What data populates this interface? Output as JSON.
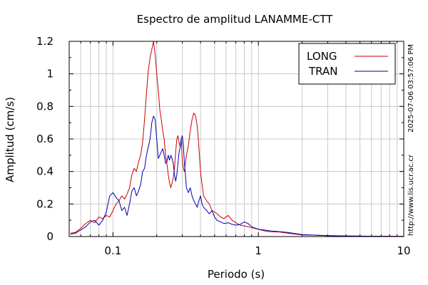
{
  "chart_data": {
    "type": "line",
    "title": "Espectro de amplitud LANAMME-CTT",
    "xlabel": "Periodo (s)",
    "ylabel": "Amplitud (cm/s)",
    "xscale": "log",
    "xlim": [
      0.05,
      10
    ],
    "ylim": [
      0,
      1.2
    ],
    "x_ticks": [
      {
        "value": 0.1,
        "label": "0.1"
      },
      {
        "value": 1,
        "label": "1"
      },
      {
        "value": 10,
        "label": "10"
      }
    ],
    "y_ticks": [
      {
        "value": 0,
        "label": "0"
      },
      {
        "value": 0.2,
        "label": "0.2"
      },
      {
        "value": 0.4,
        "label": "0.4"
      },
      {
        "value": 0.6,
        "label": "0.6"
      },
      {
        "value": 0.8,
        "label": "0.8"
      },
      {
        "value": 1.0,
        "label": "1"
      },
      {
        "value": 1.2,
        "label": "1.2"
      }
    ],
    "grid": true,
    "legend_position": "top-right",
    "series": [
      {
        "name": "LONG",
        "color": "#cc0000",
        "points": [
          [
            0.051,
            0.02
          ],
          [
            0.055,
            0.025
          ],
          [
            0.06,
            0.05
          ],
          [
            0.065,
            0.08
          ],
          [
            0.07,
            0.1
          ],
          [
            0.075,
            0.085
          ],
          [
            0.08,
            0.12
          ],
          [
            0.085,
            0.11
          ],
          [
            0.09,
            0.13
          ],
          [
            0.095,
            0.12
          ],
          [
            0.1,
            0.16
          ],
          [
            0.105,
            0.2
          ],
          [
            0.11,
            0.22
          ],
          [
            0.115,
            0.25
          ],
          [
            0.12,
            0.23
          ],
          [
            0.125,
            0.26
          ],
          [
            0.13,
            0.3
          ],
          [
            0.135,
            0.38
          ],
          [
            0.14,
            0.42
          ],
          [
            0.145,
            0.4
          ],
          [
            0.15,
            0.46
          ],
          [
            0.155,
            0.5
          ],
          [
            0.16,
            0.58
          ],
          [
            0.165,
            0.72
          ],
          [
            0.17,
            0.88
          ],
          [
            0.175,
            1.02
          ],
          [
            0.18,
            1.1
          ],
          [
            0.185,
            1.15
          ],
          [
            0.19,
            1.2
          ],
          [
            0.195,
            1.12
          ],
          [
            0.2,
            1.0
          ],
          [
            0.205,
            0.9
          ],
          [
            0.21,
            0.78
          ],
          [
            0.215,
            0.72
          ],
          [
            0.22,
            0.65
          ],
          [
            0.225,
            0.6
          ],
          [
            0.23,
            0.5
          ],
          [
            0.235,
            0.45
          ],
          [
            0.24,
            0.38
          ],
          [
            0.245,
            0.33
          ],
          [
            0.25,
            0.3
          ],
          [
            0.255,
            0.33
          ],
          [
            0.26,
            0.36
          ],
          [
            0.265,
            0.42
          ],
          [
            0.27,
            0.52
          ],
          [
            0.275,
            0.6
          ],
          [
            0.28,
            0.62
          ],
          [
            0.285,
            0.58
          ],
          [
            0.29,
            0.55
          ],
          [
            0.295,
            0.6
          ],
          [
            0.3,
            0.46
          ],
          [
            0.305,
            0.42
          ],
          [
            0.31,
            0.4
          ],
          [
            0.315,
            0.45
          ],
          [
            0.32,
            0.5
          ],
          [
            0.33,
            0.56
          ],
          [
            0.34,
            0.65
          ],
          [
            0.35,
            0.72
          ],
          [
            0.36,
            0.76
          ],
          [
            0.37,
            0.74
          ],
          [
            0.38,
            0.68
          ],
          [
            0.39,
            0.55
          ],
          [
            0.4,
            0.4
          ],
          [
            0.41,
            0.32
          ],
          [
            0.42,
            0.25
          ],
          [
            0.44,
            0.22
          ],
          [
            0.46,
            0.2
          ],
          [
            0.48,
            0.16
          ],
          [
            0.5,
            0.15
          ],
          [
            0.52,
            0.14
          ],
          [
            0.55,
            0.12
          ],
          [
            0.58,
            0.11
          ],
          [
            0.62,
            0.13
          ],
          [
            0.66,
            0.1
          ],
          [
            0.7,
            0.085
          ],
          [
            0.75,
            0.07
          ],
          [
            0.8,
            0.065
          ],
          [
            0.85,
            0.06
          ],
          [
            0.9,
            0.055
          ],
          [
            1.0,
            0.045
          ],
          [
            1.1,
            0.035
          ],
          [
            1.2,
            0.03
          ],
          [
            1.4,
            0.028
          ],
          [
            1.6,
            0.02
          ],
          [
            1.8,
            0.015
          ],
          [
            2.0,
            0.01
          ],
          [
            2.5,
            0.008
          ],
          [
            3.0,
            0.006
          ],
          [
            4.0,
            0.004
          ],
          [
            5.0,
            0.003
          ],
          [
            6.0,
            0.002
          ],
          [
            8.0,
            0.002
          ],
          [
            10.0,
            0.001
          ]
        ]
      },
      {
        "name": "TRAN",
        "color": "#0000aa",
        "points": [
          [
            0.051,
            0.015
          ],
          [
            0.055,
            0.02
          ],
          [
            0.06,
            0.04
          ],
          [
            0.065,
            0.06
          ],
          [
            0.07,
            0.09
          ],
          [
            0.075,
            0.1
          ],
          [
            0.08,
            0.07
          ],
          [
            0.085,
            0.1
          ],
          [
            0.09,
            0.15
          ],
          [
            0.095,
            0.25
          ],
          [
            0.1,
            0.27
          ],
          [
            0.105,
            0.24
          ],
          [
            0.11,
            0.22
          ],
          [
            0.115,
            0.16
          ],
          [
            0.12,
            0.18
          ],
          [
            0.125,
            0.13
          ],
          [
            0.13,
            0.2
          ],
          [
            0.135,
            0.28
          ],
          [
            0.14,
            0.3
          ],
          [
            0.145,
            0.25
          ],
          [
            0.15,
            0.28
          ],
          [
            0.155,
            0.32
          ],
          [
            0.16,
            0.4
          ],
          [
            0.165,
            0.42
          ],
          [
            0.17,
            0.5
          ],
          [
            0.175,
            0.55
          ],
          [
            0.18,
            0.6
          ],
          [
            0.185,
            0.7
          ],
          [
            0.19,
            0.74
          ],
          [
            0.195,
            0.72
          ],
          [
            0.2,
            0.6
          ],
          [
            0.205,
            0.48
          ],
          [
            0.21,
            0.5
          ],
          [
            0.215,
            0.52
          ],
          [
            0.22,
            0.54
          ],
          [
            0.225,
            0.5
          ],
          [
            0.23,
            0.45
          ],
          [
            0.235,
            0.46
          ],
          [
            0.24,
            0.5
          ],
          [
            0.245,
            0.47
          ],
          [
            0.25,
            0.5
          ],
          [
            0.255,
            0.48
          ],
          [
            0.26,
            0.45
          ],
          [
            0.265,
            0.38
          ],
          [
            0.27,
            0.34
          ],
          [
            0.275,
            0.38
          ],
          [
            0.28,
            0.45
          ],
          [
            0.285,
            0.52
          ],
          [
            0.29,
            0.55
          ],
          [
            0.295,
            0.6
          ],
          [
            0.3,
            0.62
          ],
          [
            0.305,
            0.56
          ],
          [
            0.31,
            0.45
          ],
          [
            0.315,
            0.38
          ],
          [
            0.32,
            0.3
          ],
          [
            0.33,
            0.27
          ],
          [
            0.34,
            0.3
          ],
          [
            0.35,
            0.25
          ],
          [
            0.36,
            0.22
          ],
          [
            0.37,
            0.2
          ],
          [
            0.38,
            0.18
          ],
          [
            0.39,
            0.22
          ],
          [
            0.4,
            0.25
          ],
          [
            0.41,
            0.2
          ],
          [
            0.42,
            0.18
          ],
          [
            0.44,
            0.16
          ],
          [
            0.46,
            0.14
          ],
          [
            0.48,
            0.16
          ],
          [
            0.5,
            0.12
          ],
          [
            0.52,
            0.1
          ],
          [
            0.55,
            0.09
          ],
          [
            0.58,
            0.08
          ],
          [
            0.62,
            0.085
          ],
          [
            0.66,
            0.075
          ],
          [
            0.7,
            0.07
          ],
          [
            0.75,
            0.075
          ],
          [
            0.8,
            0.09
          ],
          [
            0.85,
            0.08
          ],
          [
            0.9,
            0.06
          ],
          [
            1.0,
            0.045
          ],
          [
            1.1,
            0.04
          ],
          [
            1.2,
            0.035
          ],
          [
            1.4,
            0.03
          ],
          [
            1.6,
            0.025
          ],
          [
            1.8,
            0.018
          ],
          [
            2.0,
            0.012
          ],
          [
            2.5,
            0.008
          ],
          [
            3.0,
            0.005
          ],
          [
            4.0,
            0.003
          ],
          [
            5.0,
            0.002
          ],
          [
            6.0,
            0.002
          ],
          [
            8.0,
            0.001
          ],
          [
            10.0,
            0.001
          ]
        ]
      }
    ]
  },
  "side_text": {
    "timestamp": "2025-07-06 03:57:06 PM",
    "url": "http://www.lis.ucr.ac.cr"
  }
}
